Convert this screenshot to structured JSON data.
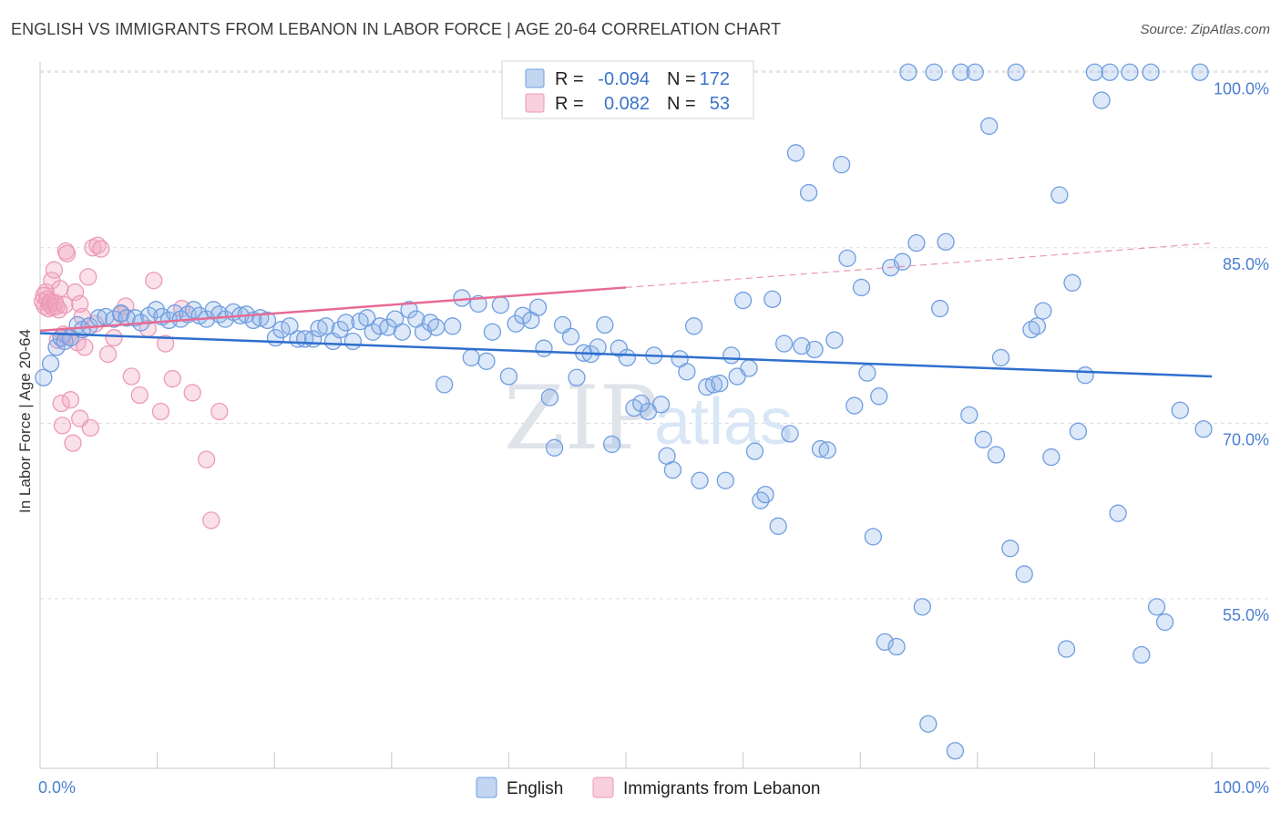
{
  "header": {
    "title": "ENGLISH VS IMMIGRANTS FROM LEBANON IN LABOR FORCE | AGE 20-64 CORRELATION CHART",
    "source": "Source: ZipAtlas.com"
  },
  "watermark": {
    "part1": "ZIP",
    "part2": "atlas"
  },
  "legend": {
    "rows": [
      {
        "r_label": "R =",
        "r_value": "-0.094",
        "n_label": "N =",
        "n_value": "172",
        "color": "#8fb4e8"
      },
      {
        "r_label": "R =",
        "r_value": "0.082",
        "n_label": "N =",
        "n_value": "53",
        "color": "#f2a7bf"
      }
    ]
  },
  "chart_data": {
    "type": "scatter",
    "title": "ENGLISH VS IMMIGRANTS FROM LEBANON IN LABOR FORCE | AGE 20-64 CORRELATION CHART",
    "ylabel": "In Labor Force | Age 20-64",
    "xlabel": "",
    "x_tick_labels": [
      "0.0%",
      "100.0%"
    ],
    "y_tick_labels": [
      "100.0%",
      "85.0%",
      "70.0%",
      "55.0%"
    ],
    "y_ticks": [
      100,
      85,
      70,
      55
    ],
    "xlim": [
      0,
      100
    ],
    "ylim": [
      40.5,
      101.5
    ],
    "grid": true,
    "legend_placement": "top-center",
    "colors": {
      "english": "#5b8fd9",
      "lebanon": "#ec7fa4",
      "english_line": "#2f6fce",
      "lebanon_line": "#e66b95"
    },
    "series": [
      {
        "name": "English",
        "trend": {
          "x": [
            0,
            100
          ],
          "y": [
            77.7,
            74.0
          ]
        },
        "points": [
          [
            0.3,
            73.9
          ],
          [
            0.9,
            75.1
          ],
          [
            1.4,
            76.5
          ],
          [
            1.8,
            77.3
          ],
          [
            2.1,
            77.0
          ],
          [
            2.6,
            77.3
          ],
          [
            3.2,
            78.4
          ],
          [
            3.6,
            78.0
          ],
          [
            4.2,
            78.3
          ],
          [
            5.0,
            79.0
          ],
          [
            5.6,
            79.1
          ],
          [
            6.3,
            78.9
          ],
          [
            6.9,
            79.4
          ],
          [
            7.4,
            79.0
          ],
          [
            8.1,
            79.0
          ],
          [
            8.6,
            78.6
          ],
          [
            9.3,
            79.2
          ],
          [
            9.9,
            79.7
          ],
          [
            10.4,
            79.1
          ],
          [
            11.0,
            78.8
          ],
          [
            11.5,
            79.4
          ],
          [
            12.0,
            78.9
          ],
          [
            12.6,
            79.3
          ],
          [
            13.1,
            79.7
          ],
          [
            13.6,
            79.2
          ],
          [
            14.2,
            78.9
          ],
          [
            14.8,
            79.7
          ],
          [
            15.3,
            79.3
          ],
          [
            15.8,
            78.9
          ],
          [
            16.5,
            79.5
          ],
          [
            17.1,
            79.2
          ],
          [
            17.6,
            79.3
          ],
          [
            18.2,
            78.8
          ],
          [
            18.8,
            79.0
          ],
          [
            19.4,
            78.8
          ],
          [
            20.1,
            77.3
          ],
          [
            20.6,
            78.0
          ],
          [
            21.3,
            78.3
          ],
          [
            22.0,
            77.2
          ],
          [
            22.6,
            77.2
          ],
          [
            23.3,
            77.2
          ],
          [
            23.8,
            78.1
          ],
          [
            24.4,
            78.3
          ],
          [
            25.0,
            77.0
          ],
          [
            25.6,
            78.0
          ],
          [
            26.1,
            78.6
          ],
          [
            26.7,
            77.0
          ],
          [
            27.3,
            78.7
          ],
          [
            27.9,
            79.0
          ],
          [
            28.4,
            77.8
          ],
          [
            29.0,
            78.3
          ],
          [
            29.7,
            78.2
          ],
          [
            30.3,
            78.9
          ],
          [
            30.9,
            77.8
          ],
          [
            31.5,
            79.7
          ],
          [
            32.1,
            78.9
          ],
          [
            32.7,
            77.8
          ],
          [
            33.3,
            78.6
          ],
          [
            33.8,
            78.2
          ],
          [
            34.5,
            73.3
          ],
          [
            35.2,
            78.3
          ],
          [
            36.0,
            80.7
          ],
          [
            36.8,
            75.6
          ],
          [
            37.4,
            80.2
          ],
          [
            38.1,
            75.3
          ],
          [
            38.6,
            77.8
          ],
          [
            39.3,
            80.1
          ],
          [
            40.0,
            74.0
          ],
          [
            40.6,
            78.5
          ],
          [
            41.2,
            79.2
          ],
          [
            41.9,
            78.8
          ],
          [
            42.5,
            79.9
          ],
          [
            43.0,
            76.4
          ],
          [
            43.5,
            72.2
          ],
          [
            43.9,
            67.9
          ],
          [
            44.6,
            78.4
          ],
          [
            45.3,
            77.4
          ],
          [
            45.8,
            73.9
          ],
          [
            46.4,
            76.0
          ],
          [
            47.0,
            75.9
          ],
          [
            47.6,
            76.5
          ],
          [
            48.2,
            78.4
          ],
          [
            48.8,
            68.2
          ],
          [
            49.4,
            76.4
          ],
          [
            50.1,
            75.6
          ],
          [
            50.7,
            71.3
          ],
          [
            51.3,
            71.7
          ],
          [
            51.9,
            71.0
          ],
          [
            52.4,
            75.8
          ],
          [
            53.0,
            71.6
          ],
          [
            53.5,
            67.2
          ],
          [
            54.0,
            66.0
          ],
          [
            54.6,
            75.5
          ],
          [
            55.2,
            74.4
          ],
          [
            55.8,
            78.3
          ],
          [
            56.3,
            65.1
          ],
          [
            56.9,
            73.1
          ],
          [
            57.5,
            73.3
          ],
          [
            58.0,
            73.4
          ],
          [
            58.5,
            65.1
          ],
          [
            59.0,
            75.8
          ],
          [
            59.5,
            74.0
          ],
          [
            60.0,
            80.5
          ],
          [
            60.5,
            74.7
          ],
          [
            61.0,
            67.6
          ],
          [
            61.5,
            63.4
          ],
          [
            61.9,
            63.9
          ],
          [
            62.5,
            80.6
          ],
          [
            63.0,
            61.2
          ],
          [
            63.5,
            76.8
          ],
          [
            64.0,
            69.1
          ],
          [
            64.5,
            93.1
          ],
          [
            65.0,
            76.6
          ],
          [
            65.6,
            89.7
          ],
          [
            66.1,
            76.3
          ],
          [
            66.6,
            67.8
          ],
          [
            67.2,
            67.7
          ],
          [
            67.8,
            77.1
          ],
          [
            68.4,
            92.1
          ],
          [
            68.9,
            84.1
          ],
          [
            69.5,
            71.5
          ],
          [
            70.1,
            81.6
          ],
          [
            70.6,
            74.3
          ],
          [
            71.1,
            60.3
          ],
          [
            71.6,
            72.3
          ],
          [
            72.1,
            51.3
          ],
          [
            72.6,
            83.3
          ],
          [
            73.1,
            50.9
          ],
          [
            73.6,
            83.8
          ],
          [
            74.1,
            100.0
          ],
          [
            74.8,
            85.4
          ],
          [
            75.3,
            54.3
          ],
          [
            75.8,
            44.3
          ],
          [
            76.3,
            100.0
          ],
          [
            76.8,
            79.8
          ],
          [
            77.3,
            85.5
          ],
          [
            78.1,
            42.0
          ],
          [
            78.6,
            100.0
          ],
          [
            79.3,
            70.7
          ],
          [
            79.8,
            100.0
          ],
          [
            80.5,
            68.6
          ],
          [
            81.0,
            95.4
          ],
          [
            81.6,
            67.3
          ],
          [
            82.0,
            75.6
          ],
          [
            82.8,
            59.3
          ],
          [
            83.3,
            100.0
          ],
          [
            84.0,
            57.1
          ],
          [
            84.6,
            78.0
          ],
          [
            85.1,
            78.3
          ],
          [
            85.6,
            79.6
          ],
          [
            86.3,
            67.1
          ],
          [
            87.0,
            89.5
          ],
          [
            87.6,
            50.7
          ],
          [
            88.1,
            82.0
          ],
          [
            88.6,
            69.3
          ],
          [
            89.2,
            74.1
          ],
          [
            90.0,
            100.0
          ],
          [
            90.6,
            97.6
          ],
          [
            91.3,
            100.0
          ],
          [
            92.0,
            62.3
          ],
          [
            93.0,
            100.0
          ],
          [
            94.0,
            50.2
          ],
          [
            94.8,
            100.0
          ],
          [
            95.3,
            54.3
          ],
          [
            96.0,
            53.0
          ],
          [
            97.3,
            71.1
          ],
          [
            99.0,
            100.0
          ],
          [
            99.3,
            69.5
          ]
        ]
      },
      {
        "name": "Immigrants from Lebanon",
        "trend": {
          "x": [
            0,
            50
          ],
          "y": [
            77.9,
            81.6
          ]
        },
        "trend_dashed": {
          "x": [
            50,
            100
          ],
          "y": [
            81.6,
            85.4
          ]
        },
        "points": [
          [
            0.2,
            80.4
          ],
          [
            0.3,
            80.9
          ],
          [
            0.4,
            80.0
          ],
          [
            0.5,
            81.2
          ],
          [
            0.6,
            80.6
          ],
          [
            0.7,
            79.8
          ],
          [
            0.8,
            80.2
          ],
          [
            0.9,
            80.4
          ],
          [
            1.0,
            82.2
          ],
          [
            1.1,
            79.9
          ],
          [
            1.2,
            83.1
          ],
          [
            1.3,
            80.3
          ],
          [
            1.4,
            80.0
          ],
          [
            1.5,
            77.1
          ],
          [
            1.6,
            79.7
          ],
          [
            1.7,
            81.5
          ],
          [
            1.8,
            71.7
          ],
          [
            1.9,
            69.8
          ],
          [
            2.0,
            77.6
          ],
          [
            2.1,
            80.1
          ],
          [
            2.2,
            84.7
          ],
          [
            2.3,
            84.5
          ],
          [
            2.4,
            77.4
          ],
          [
            2.6,
            72.0
          ],
          [
            2.8,
            68.3
          ],
          [
            3.0,
            81.2
          ],
          [
            3.2,
            76.9
          ],
          [
            3.4,
            70.4
          ],
          [
            3.6,
            79.1
          ],
          [
            3.8,
            76.5
          ],
          [
            4.1,
            82.5
          ],
          [
            4.3,
            69.6
          ],
          [
            4.5,
            85.0
          ],
          [
            4.7,
            78.5
          ],
          [
            4.9,
            85.2
          ],
          [
            5.2,
            84.9
          ],
          [
            5.8,
            75.9
          ],
          [
            6.3,
            77.3
          ],
          [
            6.9,
            79.3
          ],
          [
            7.3,
            80.0
          ],
          [
            7.8,
            74.0
          ],
          [
            8.5,
            72.4
          ],
          [
            9.2,
            78.1
          ],
          [
            9.7,
            82.2
          ],
          [
            10.3,
            71.0
          ],
          [
            10.7,
            76.8
          ],
          [
            11.3,
            73.8
          ],
          [
            12.1,
            79.8
          ],
          [
            13.0,
            72.6
          ],
          [
            14.2,
            66.9
          ],
          [
            14.6,
            61.7
          ],
          [
            15.3,
            71.0
          ],
          [
            3.4,
            80.2
          ]
        ]
      }
    ]
  },
  "bottom_legend": {
    "items": [
      {
        "label": "English",
        "color": "#8fb4e8"
      },
      {
        "label": "Immigrants from Lebanon",
        "color": "#f2a7bf"
      }
    ]
  }
}
